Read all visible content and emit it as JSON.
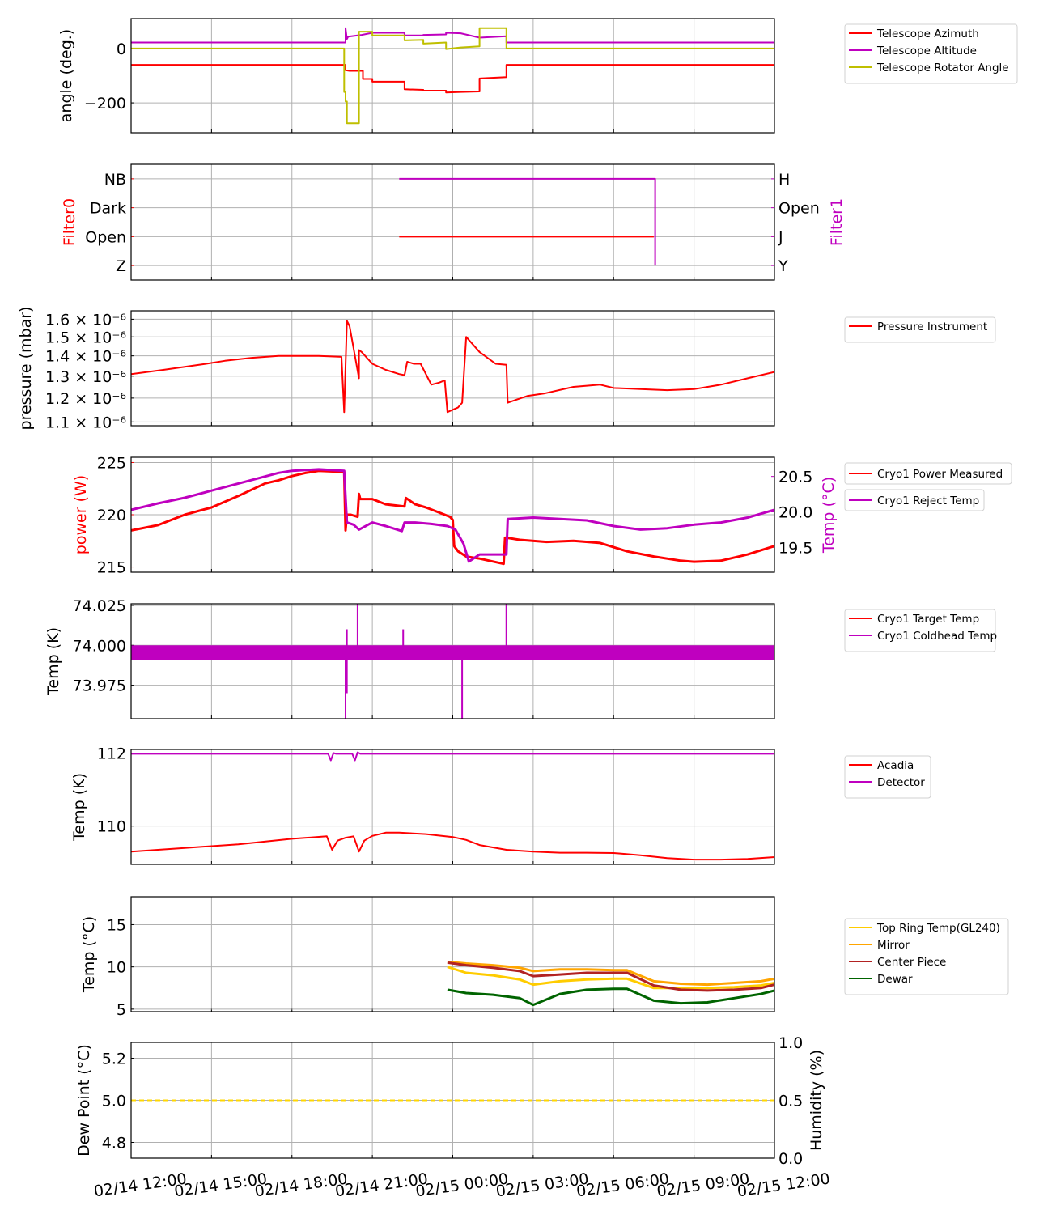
{
  "x_axis": {
    "start": "02/14 12:00",
    "end": "02/15 12:00",
    "range_hours": [
      0,
      24
    ],
    "tick_hours": [
      0,
      3,
      6,
      9,
      12,
      15,
      18,
      21,
      24
    ],
    "tick_labels": [
      "02/14 12:00",
      "02/14 15:00",
      "02/14 18:00",
      "02/14 21:00",
      "02/15 00:00",
      "02/15 03:00",
      "02/15 06:00",
      "02/15 09:00",
      "02/15 12:00"
    ],
    "unit": "hours since 02/14 12:00"
  },
  "chart_data": [
    {
      "id": "angles",
      "type": "line",
      "ylabel": "angle (deg.)",
      "ylim": [
        -310,
        110
      ],
      "yticks": [
        0,
        -200
      ],
      "ytick_labels": [
        "0",
        "−200"
      ],
      "legend": "right",
      "series": [
        {
          "name": "Telescope Azimuth",
          "color": "#ff0000",
          "x": [
            0,
            8.0,
            8.0,
            8.15,
            8.15,
            8.65,
            8.65,
            9.0,
            9.0,
            10.2,
            10.2,
            10.9,
            10.9,
            11.75,
            11.75,
            12.3,
            12.3,
            13.0,
            13.0,
            14.0,
            14.0,
            24
          ],
          "y": [
            -60,
            -60,
            -80,
            -82,
            -82,
            -82,
            -112,
            -112,
            -122,
            -122,
            -150,
            -152,
            -155,
            -155,
            -162,
            -160,
            -160,
            -158,
            -110,
            -105,
            -60,
            -60
          ]
        },
        {
          "name": "Telescope Altitude",
          "color": "#bf00bf",
          "x": [
            0,
            8.0,
            8.0,
            8.05,
            8.1,
            8.6,
            9.0,
            10.2,
            10.2,
            10.9,
            10.9,
            11.75,
            11.75,
            12.3,
            12.3,
            13.0,
            13.0,
            14.0,
            14.0,
            24
          ],
          "y": [
            22,
            22,
            75,
            35,
            44,
            50,
            58,
            58,
            48,
            48,
            50,
            52,
            58,
            56,
            56,
            40,
            40,
            45,
            22,
            22
          ]
        },
        {
          "name": "Telescope Rotator Angle",
          "color": "#bfbf00",
          "x": [
            0,
            7.95,
            7.95,
            8.0,
            8.0,
            8.05,
            8.05,
            8.5,
            8.5,
            9.0,
            9.0,
            10.2,
            10.2,
            10.9,
            10.9,
            11.75,
            11.75,
            12.3,
            12.3,
            13.0,
            13.0,
            14.0,
            14.0,
            24
          ],
          "y": [
            0,
            0,
            -160,
            -160,
            -195,
            -195,
            -275,
            -275,
            62,
            62,
            48,
            48,
            30,
            32,
            18,
            22,
            -2,
            4,
            4,
            8,
            75,
            75,
            0,
            0
          ]
        }
      ]
    },
    {
      "id": "filters",
      "type": "line",
      "ylabel": "Filter0",
      "ylabel_right": "Filter1",
      "ylim": [
        -0.5,
        3.5
      ],
      "yticks": [
        0,
        1,
        2,
        3
      ],
      "ytick_labels": [
        "Z",
        "Open",
        "Dark",
        "NB"
      ],
      "ytick_labels_right": [
        "Y",
        "J",
        "Open",
        "H"
      ],
      "series": [
        {
          "name": "Filter0",
          "color": "#ff0000",
          "axis": "left",
          "x": [
            10,
            19.5
          ],
          "y": [
            1,
            1
          ]
        },
        {
          "name": "Filter1",
          "color": "#bf00bf",
          "axis": "right",
          "x": [
            10,
            19.55,
            19.55
          ],
          "y": [
            3,
            3,
            0
          ]
        }
      ]
    },
    {
      "id": "pressure",
      "type": "line",
      "ylabel": "pressure (mbar)",
      "yscale": "log",
      "ylim": [
        1.085e-06,
        1.65e-06
      ],
      "yticks": [
        1.1e-06,
        1.2e-06,
        1.3e-06,
        1.4e-06,
        1.5e-06,
        1.6e-06
      ],
      "ytick_labels": [
        "1.1 × 10⁻⁶",
        "1.2 × 10⁻⁶",
        "1.3 × 10⁻⁶",
        "1.4 × 10⁻⁶",
        "1.5 × 10⁻⁶",
        "1.6 × 10⁻⁶"
      ],
      "legend": "right",
      "series": [
        {
          "name": "Pressure Instrument",
          "color": "#ff0000",
          "x": [
            0,
            0.6,
            1.2,
            2.0,
            2.8,
            3.5,
            4.5,
            5.5,
            7.0,
            7.85,
            7.95,
            8.05,
            8.15,
            8.5,
            8.5,
            8.6,
            9.0,
            9.5,
            10.0,
            10.2,
            10.3,
            10.55,
            10.8,
            11.2,
            11.5,
            11.7,
            11.8,
            12.2,
            12.35,
            12.5,
            13.0,
            13.6,
            14.0,
            14.05,
            14.3,
            14.8,
            15.4,
            16.5,
            17.5,
            18.0,
            19.0,
            20.0,
            21.0,
            22.0,
            23.0,
            24.0
          ],
          "y": [
            1.31e-06,
            1.32e-06,
            1.33e-06,
            1.345e-06,
            1.36e-06,
            1.375e-06,
            1.39e-06,
            1.4e-06,
            1.4e-06,
            1.395e-06,
            1.14e-06,
            1.59e-06,
            1.56e-06,
            1.29e-06,
            1.43e-06,
            1.42e-06,
            1.36e-06,
            1.33e-06,
            1.31e-06,
            1.305e-06,
            1.37e-06,
            1.36e-06,
            1.36e-06,
            1.26e-06,
            1.27e-06,
            1.28e-06,
            1.14e-06,
            1.16e-06,
            1.18e-06,
            1.5e-06,
            1.42e-06,
            1.36e-06,
            1.355e-06,
            1.18e-06,
            1.19e-06,
            1.21e-06,
            1.22e-06,
            1.25e-06,
            1.26e-06,
            1.245e-06,
            1.24e-06,
            1.235e-06,
            1.24e-06,
            1.26e-06,
            1.29e-06,
            1.32e-06
          ]
        }
      ]
    },
    {
      "id": "cryo_power",
      "type": "line",
      "ylabel": "power (W)",
      "ylabel_right": "Temp (°C)",
      "ylim": [
        214.5,
        225.5
      ],
      "yticks": [
        215,
        220,
        225
      ],
      "ytick_labels": [
        "215",
        "220",
        "225"
      ],
      "ylim_right": [
        19.15,
        20.77
      ],
      "yticks_right": [
        19.5,
        20.0,
        20.5
      ],
      "ytick_labels_right": [
        "19.5",
        "20.0",
        "20.5"
      ],
      "legend": "right",
      "series": [
        {
          "name": "Cryo1 Power Measured",
          "color": "#ff0000",
          "axis": "left",
          "x": [
            0,
            1,
            2,
            3,
            4,
            5,
            5.5,
            6,
            6.5,
            7,
            7.95,
            8.0,
            8.05,
            8.2,
            8.45,
            8.5,
            8.55,
            9.0,
            9.5,
            10.2,
            10.25,
            10.6,
            11,
            11.5,
            11.9,
            12.0,
            12.05,
            12.2,
            12.5,
            13.0,
            13.9,
            13.95,
            14.0,
            14.5,
            15.5,
            16.5,
            17.5,
            18.5,
            19.5,
            20.5,
            21.0,
            22.0,
            23.0,
            24.0
          ],
          "y": [
            218.5,
            219,
            220,
            220.7,
            221.8,
            223.0,
            223.3,
            223.7,
            224.0,
            224.2,
            224.1,
            218.5,
            220,
            220,
            219.8,
            222.0,
            221.5,
            221.5,
            221.0,
            220.8,
            221.6,
            221.0,
            220.7,
            220.2,
            219.8,
            219.5,
            217.0,
            216.5,
            216.0,
            215.8,
            215.3,
            217.8,
            217.8,
            217.6,
            217.4,
            217.5,
            217.3,
            216.5,
            216.0,
            215.6,
            215.5,
            215.6,
            216.2,
            217.0
          ]
        },
        {
          "name": "Cryo1 Reject Temp",
          "color": "#bf00bf",
          "axis": "right",
          "x": [
            0,
            1,
            2,
            3,
            4,
            5,
            5.5,
            6,
            7,
            7.95,
            8.05,
            8.3,
            8.5,
            9.0,
            9.5,
            10.1,
            10.2,
            10.3,
            10.6,
            11.2,
            11.8,
            12.1,
            12.4,
            12.6,
            13.0,
            13.9,
            14.0,
            14.05,
            15.0,
            16.0,
            17.0,
            18.0,
            19.0,
            20.0,
            21.0,
            22.0,
            23.0,
            24.0
          ],
          "y": [
            20.03,
            20.12,
            20.2,
            20.3,
            20.4,
            20.5,
            20.55,
            20.58,
            20.6,
            20.58,
            19.85,
            19.82,
            19.75,
            19.85,
            19.8,
            19.73,
            19.85,
            19.85,
            19.85,
            19.83,
            19.8,
            19.75,
            19.55,
            19.3,
            19.4,
            19.4,
            19.4,
            19.9,
            19.92,
            19.9,
            19.88,
            19.8,
            19.75,
            19.77,
            19.82,
            19.85,
            19.92,
            20.03
          ]
        }
      ]
    },
    {
      "id": "cryo_temps",
      "type": "line",
      "ylabel": "Temp (K)",
      "ylim": [
        73.954,
        74.026
      ],
      "yticks": [
        73.975,
        74.0,
        74.025
      ],
      "ytick_labels": [
        "73.975",
        "74.000",
        "74.025"
      ],
      "legend": "right",
      "band": {
        "series": "Cryo1 Coldhead Temp",
        "low": 73.991,
        "high": 74.0
      },
      "spikes": [
        {
          "x": 8.0,
          "low": 73.954,
          "high": 73.996
        },
        {
          "x": 8.05,
          "low": 73.97,
          "high": 74.01
        },
        {
          "x": 8.45,
          "low": 73.995,
          "high": 74.026
        },
        {
          "x": 10.15,
          "low": 73.995,
          "high": 74.01
        },
        {
          "x": 12.35,
          "low": 73.954,
          "high": 73.998
        },
        {
          "x": 14.0,
          "low": 73.995,
          "high": 74.026
        }
      ],
      "series": [
        {
          "name": "Cryo1 Target Temp",
          "color": "#ff0000",
          "x": [],
          "y": []
        },
        {
          "name": "Cryo1 Coldhead Temp",
          "color": "#bf00bf",
          "x": [
            0,
            24
          ],
          "y": [
            73.9955,
            73.9955
          ]
        }
      ]
    },
    {
      "id": "detector",
      "type": "line",
      "ylabel": "Temp (K)",
      "ylim": [
        108.95,
        112.1
      ],
      "yticks": [
        110,
        112
      ],
      "ytick_labels": [
        "110",
        "112"
      ],
      "legend": "right",
      "series": [
        {
          "name": "Acadia",
          "color": "#ff0000",
          "x": [
            0,
            2,
            4,
            6,
            7.3,
            7.5,
            7.7,
            8.0,
            8.3,
            8.5,
            8.7,
            9.0,
            9.5,
            10.0,
            11.0,
            12.0,
            12.5,
            13.0,
            14.0,
            15.0,
            16.0,
            17.0,
            18.0,
            19.0,
            20.0,
            21.0,
            22.0,
            23.0,
            24.0
          ],
          "y": [
            109.3,
            109.4,
            109.5,
            109.65,
            109.72,
            109.35,
            109.6,
            109.68,
            109.72,
            109.3,
            109.6,
            109.73,
            109.82,
            109.82,
            109.78,
            109.7,
            109.62,
            109.48,
            109.35,
            109.3,
            109.27,
            109.27,
            109.26,
            109.2,
            109.12,
            109.08,
            109.08,
            109.1,
            109.15
          ]
        },
        {
          "name": "Detector",
          "color": "#bf00bf",
          "x": [
            0,
            7.35,
            7.45,
            7.55,
            7.65,
            8.25,
            8.35,
            8.45,
            8.55,
            24
          ],
          "y": [
            111.98,
            111.98,
            111.8,
            112.0,
            111.98,
            111.98,
            111.8,
            112.02,
            111.98,
            111.98
          ]
        }
      ]
    },
    {
      "id": "telescope_temps",
      "type": "line",
      "ylabel": "Temp (°C)",
      "ylim": [
        4.7,
        18.3
      ],
      "yticks": [
        5,
        10,
        15
      ],
      "ytick_labels": [
        "5",
        "10",
        "15"
      ],
      "legend": "right",
      "series": [
        {
          "name": "Top Ring Temp(GL240)",
          "color": "#ffcc00",
          "x": [
            11.8,
            12.5,
            13.5,
            14.5,
            15.0,
            16.0,
            17.0,
            18.0,
            18.5,
            19.5,
            20.5,
            21.5,
            22.5,
            23.5,
            24.0
          ],
          "y": [
            10.0,
            9.3,
            9.0,
            8.5,
            7.9,
            8.3,
            8.5,
            8.6,
            8.6,
            7.5,
            7.5,
            7.5,
            7.6,
            7.8,
            8.1
          ]
        },
        {
          "name": "Mirror",
          "color": "#ffa500",
          "x": [
            11.8,
            12.5,
            13.5,
            14.5,
            15.0,
            16.0,
            17.0,
            18.0,
            18.5,
            19.5,
            20.5,
            21.5,
            22.5,
            23.5,
            24.0
          ],
          "y": [
            10.6,
            10.4,
            10.2,
            9.9,
            9.5,
            9.7,
            9.7,
            9.6,
            9.6,
            8.3,
            8.0,
            7.9,
            8.1,
            8.3,
            8.6
          ]
        },
        {
          "name": "Center Piece",
          "color": "#b22222",
          "x": [
            11.8,
            12.5,
            13.5,
            14.5,
            15.0,
            16.0,
            17.0,
            18.0,
            18.5,
            19.5,
            20.5,
            21.5,
            22.5,
            23.5,
            24.0
          ],
          "y": [
            10.5,
            10.2,
            9.9,
            9.5,
            8.9,
            9.1,
            9.3,
            9.3,
            9.3,
            7.8,
            7.3,
            7.2,
            7.3,
            7.5,
            7.9
          ]
        },
        {
          "name": "Dewar",
          "color": "#006400",
          "x": [
            11.8,
            12.5,
            13.5,
            14.5,
            15.0,
            16.0,
            17.0,
            18.0,
            18.5,
            19.5,
            20.5,
            21.5,
            22.5,
            23.5,
            24.0
          ],
          "y": [
            7.3,
            6.9,
            6.7,
            6.3,
            5.5,
            6.8,
            7.3,
            7.4,
            7.4,
            6.0,
            5.7,
            5.8,
            6.3,
            6.8,
            7.2
          ]
        }
      ]
    },
    {
      "id": "dewpoint",
      "type": "line",
      "ylabel": "Dew Point (°C)",
      "ylabel_right": "Humidity (%)",
      "ylim": [
        4.725,
        5.275
      ],
      "yticks": [
        4.8,
        5.0,
        5.2
      ],
      "ytick_labels": [
        "4.8",
        "5.0",
        "5.2"
      ],
      "ylim_right": [
        0.0,
        1.0
      ],
      "yticks_right": [
        0.0,
        0.5,
        1.0
      ],
      "ytick_labels_right": [
        "0.0",
        "0.5",
        "1.0"
      ],
      "series": [
        {
          "name": "Dew Point",
          "color": "#ffd700",
          "dashed": true,
          "x": [
            0,
            24
          ],
          "y": [
            5.0,
            5.0
          ]
        }
      ]
    }
  ]
}
